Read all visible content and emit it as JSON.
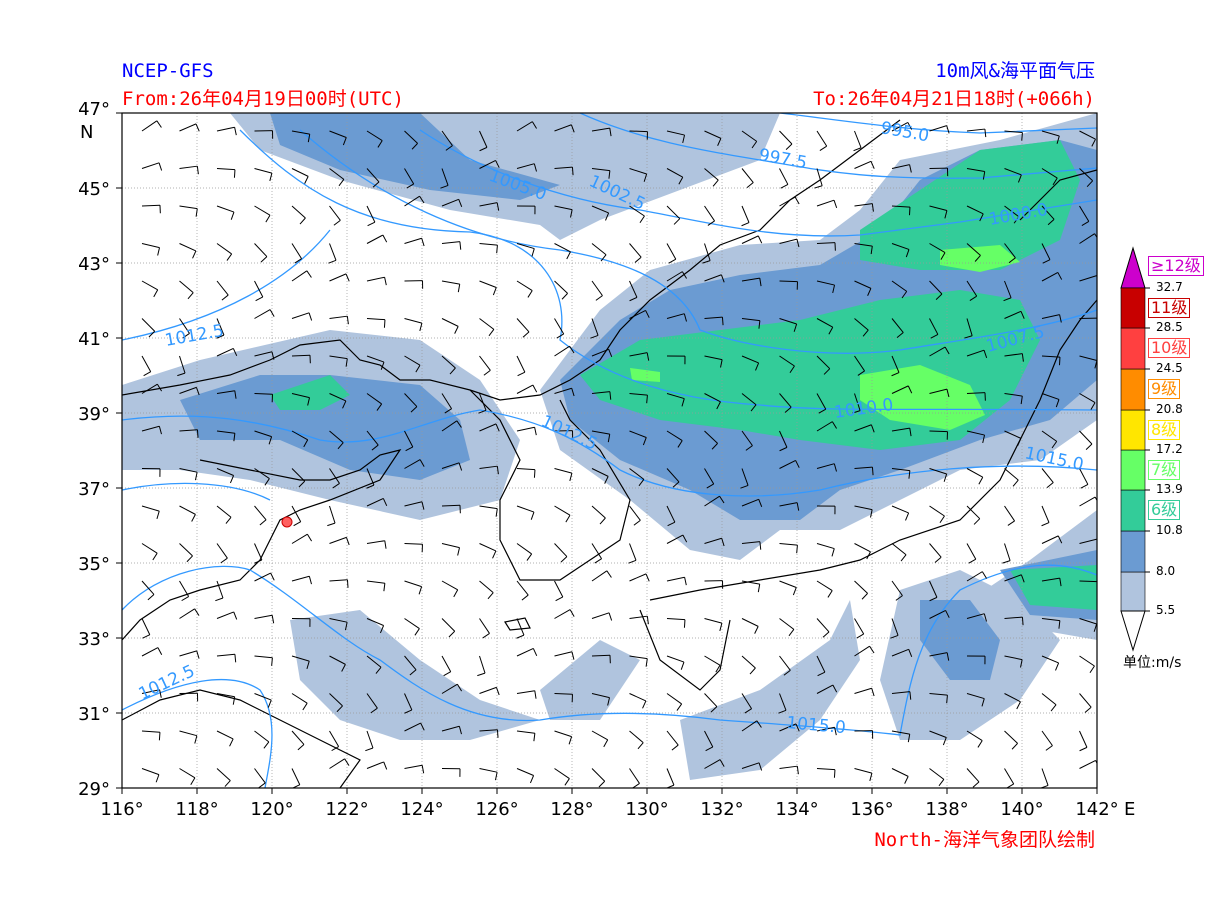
{
  "header": {
    "model": "NCEP-GFS",
    "product": "10m风&海平面气压",
    "from": "From:26年04月19日00时(UTC)",
    "to": "To:26年04月21日18时(+066h)",
    "credit": "North-海洋气象团队绘制"
  },
  "axes": {
    "lon_ticks": [
      "116°",
      "118°",
      "120°",
      "122°",
      "124°",
      "126°",
      "128°",
      "130°",
      "132°",
      "134°",
      "136°",
      "138°",
      "140°",
      "142°"
    ],
    "lon_unit": "E",
    "lat_ticks": [
      "47°",
      "45°",
      "43°",
      "41°",
      "39°",
      "37°",
      "35°",
      "33°",
      "31°",
      "29°"
    ],
    "lat_unit": "N",
    "lon_range": [
      116,
      142
    ],
    "lat_range": [
      29,
      47
    ],
    "grid": true
  },
  "isobar_labels": [
    "995.0",
    "997.5",
    "1000.0",
    "1002.5",
    "1005.0",
    "1007.5",
    "1010.0",
    "1012.5",
    "1012.5",
    "1012.5",
    "1015.0",
    "1015.0"
  ],
  "colorbar": {
    "ticks": [
      "5.5",
      "8.0",
      "10.8",
      "13.9",
      "17.2",
      "20.8",
      "24.5",
      "28.5",
      "32.7"
    ],
    "colors": [
      "#b0c4de",
      "#6b9bd2",
      "#33cc99",
      "#66ff66",
      "#ffe600",
      "#ff8c00",
      "#ff4040",
      "#c80000",
      "#cc00cc"
    ],
    "levels": [
      {
        "label": "6级",
        "color": "#33cc99"
      },
      {
        "label": "7级",
        "color": "#66ff66"
      },
      {
        "label": "8级",
        "color": "#ffe600"
      },
      {
        "label": "9级",
        "color": "#ff8c00"
      },
      {
        "label": "10级",
        "color": "#ff4040"
      },
      {
        "label": "11级",
        "color": "#c80000"
      },
      {
        "label": "≥12级",
        "color": "#cc00cc"
      }
    ],
    "unit": "单位:m/s"
  }
}
